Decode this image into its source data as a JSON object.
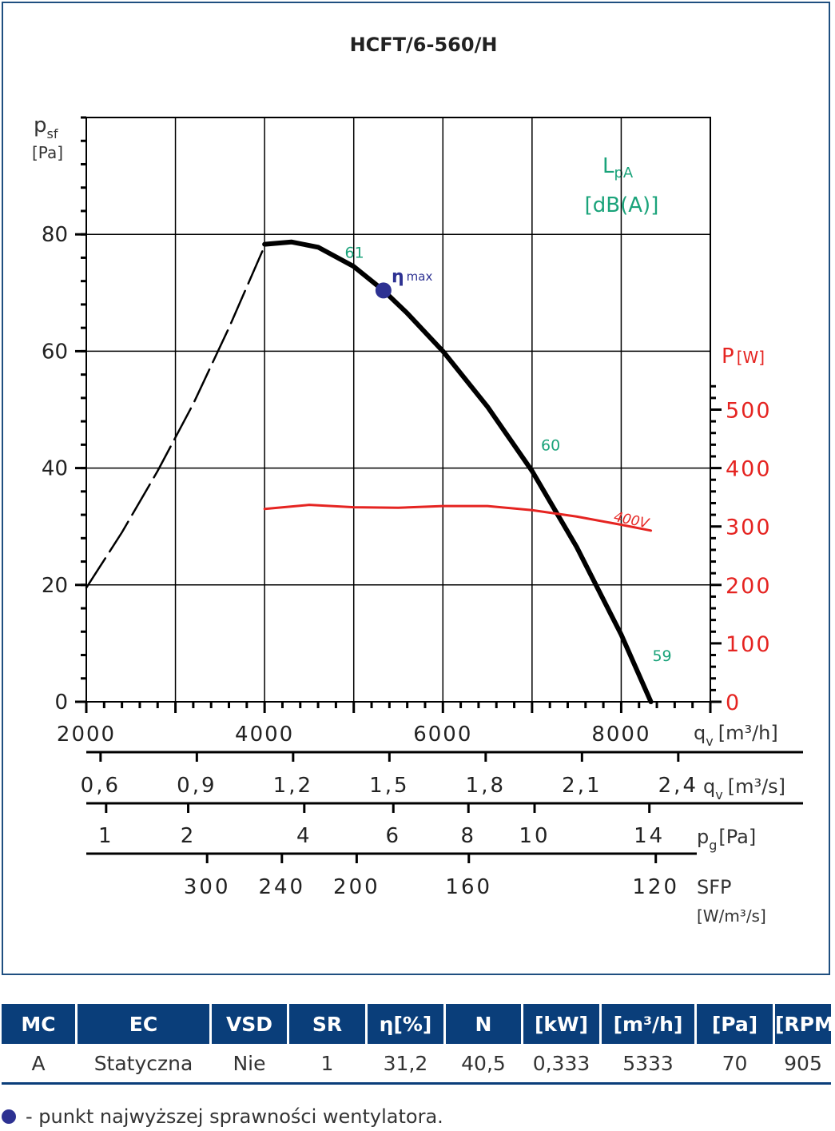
{
  "colors": {
    "frame": "#1f4f80",
    "header_bg": "#0a3e7a",
    "pressure_curve": "#000000",
    "power_curve": "#e52421",
    "noise_labels": "#1aa37a",
    "eta_marker": "#2d3192"
  },
  "chart_data": {
    "type": "line",
    "title": "HCFT/6-560/H",
    "ylabel_main": "p",
    "ylabel_sub": "sf",
    "ylabel_unit": "[Pa]",
    "ylim": [
      0,
      100
    ],
    "yticks": [
      "0",
      "20",
      "40",
      "60",
      "80"
    ],
    "y_right_label": "P",
    "y_right_unit": "[W]",
    "y_right_lim": [
      0,
      1000
    ],
    "y_right_ticks": [
      "0",
      "100",
      "200",
      "300",
      "400",
      "500"
    ],
    "xlabel_main": "q",
    "xlabel_sub": "v",
    "xlabel_unit": "[m³/h]",
    "xlim": [
      2000,
      9000
    ],
    "xticks": [
      "2000",
      "4000",
      "6000",
      "8000"
    ],
    "grid": true,
    "scale_m3s": {
      "label": "q",
      "sub": "v",
      "unit": "[m³/s]",
      "ticks": [
        {
          "label": "0,6",
          "value": 0.6
        },
        {
          "label": "0,9",
          "value": 0.9
        },
        {
          "label": "1,2",
          "value": 1.2
        },
        {
          "label": "1,5",
          "value": 1.5
        },
        {
          "label": "1,8",
          "value": 1.8
        },
        {
          "label": "2,1",
          "value": 2.1
        },
        {
          "label": "2,4",
          "value": 2.4
        }
      ]
    },
    "scale_pg": {
      "label": "p",
      "sub": "g",
      "unit": "[Pa]",
      "ticks": [
        {
          "label": "1",
          "value": 1
        },
        {
          "label": "2",
          "value": 2
        },
        {
          "label": "4",
          "value": 4
        },
        {
          "label": "6",
          "value": 6
        },
        {
          "label": "8",
          "value": 8
        },
        {
          "label": "10",
          "value": 10
        },
        {
          "label": "14",
          "value": 14
        }
      ]
    },
    "scale_sfp": {
      "label": "SFP",
      "unit": "[W/m³/s]",
      "ticks": [
        {
          "label": "300",
          "value": 300
        },
        {
          "label": "240",
          "value": 240
        },
        {
          "label": "200",
          "value": 200
        },
        {
          "label": "160",
          "value": 160
        },
        {
          "label": "120",
          "value": 120
        }
      ]
    },
    "noise_legend": {
      "label": "L",
      "sub": "pA",
      "unit": "[dB(A)]"
    },
    "noise_points": [
      {
        "label": "61",
        "x": 4900,
        "y": 76
      },
      {
        "label": "60",
        "x": 7100,
        "y": 43
      },
      {
        "label": "59",
        "x": 8350,
        "y": 7
      }
    ],
    "eta_label": "η",
    "eta_sub": "max",
    "series": [
      {
        "name": "",
        "style": "dashed",
        "x": [
          2000,
          2400,
          2800,
          3200,
          3600,
          4000
        ],
        "y": [
          19.5,
          29,
          39.5,
          51,
          64,
          78
        ]
      },
      {
        "name": "",
        "style": "solid",
        "x": [
          4000,
          4300,
          4600,
          5000,
          5333,
          5600,
          6000,
          6500,
          7000,
          7500,
          8000,
          8333
        ],
        "y": [
          78.3,
          78.7,
          77.8,
          74.5,
          70.4,
          66.5,
          60,
          50.5,
          39.5,
          26.5,
          11.5,
          0
        ]
      },
      {
        "name": "400V",
        "axis": "right",
        "style": "solid",
        "x": [
          4000,
          4500,
          5000,
          5500,
          6000,
          6500,
          7000,
          7500,
          8000,
          8333
        ],
        "y": [
          330,
          337,
          333,
          332,
          335,
          335,
          328,
          317,
          303,
          293
        ]
      }
    ],
    "eta_point": {
      "x": 5333,
      "y": 70.4
    }
  },
  "table": {
    "headers": [
      "MC",
      "EC",
      "VSD",
      "SR",
      "η[%]",
      "N",
      "[kW]",
      "[m³/h]",
      "[Pa]",
      "[RPM]"
    ],
    "row": [
      "A",
      "Statyczna",
      "Nie",
      "1",
      "31,2",
      "40,5",
      "0,333",
      "5333",
      "70",
      "905"
    ]
  },
  "footnote": "- punkt najwyższej sprawności wentylatora."
}
